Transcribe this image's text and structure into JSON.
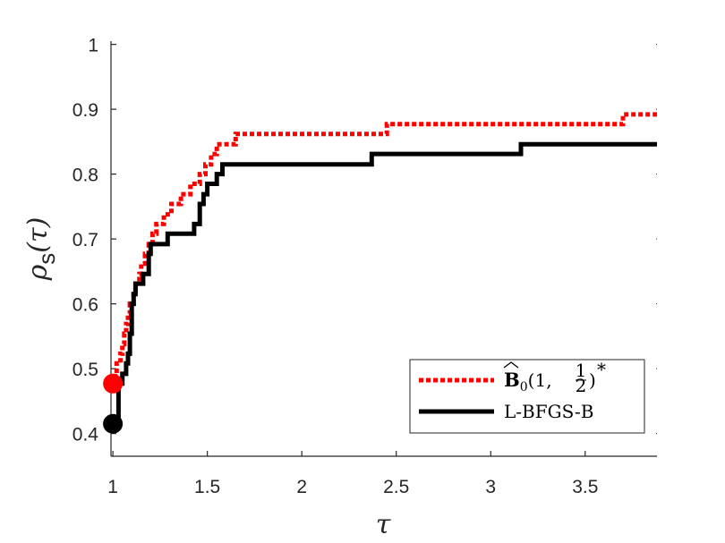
{
  "chart_data": {
    "type": "line",
    "xlabel": "τ",
    "ylabel": "ρ",
    "ylabel_sub": "s",
    "ylabel_suffix": "(τ)",
    "xlim": [
      0.99,
      3.88
    ],
    "ylim": [
      0.365,
      1.005
    ],
    "xticks": [
      1,
      1.5,
      2,
      2.5,
      3,
      3.5
    ],
    "xtick_labels": [
      "1",
      "1.5",
      "2",
      "2.5",
      "3",
      "3.5"
    ],
    "yticks": [
      0.4,
      0.5,
      0.6,
      0.7,
      0.8,
      0.9,
      1
    ],
    "ytick_labels": [
      "0.4",
      "0.5",
      "0.6",
      "0.7",
      "0.8",
      "0.9",
      "1"
    ],
    "grid": false,
    "legend_position": "bottom-right",
    "series": [
      {
        "name": "B̂0(1, ½)*",
        "legend_main": "B",
        "legend_sub": "0",
        "legend_args": "(1, ",
        "legend_frac_num": "1",
        "legend_frac_den": "2",
        "legend_close": ")",
        "legend_sup": "*",
        "color": "#ff0000",
        "style": "dotted",
        "start_marker": [
          1.0,
          0.477
        ],
        "points": [
          [
            1.0,
            0.477
          ],
          [
            1.01,
            0.477
          ],
          [
            1.01,
            0.492
          ],
          [
            1.02,
            0.492
          ],
          [
            1.02,
            0.508
          ],
          [
            1.04,
            0.508
          ],
          [
            1.04,
            0.523
          ],
          [
            1.05,
            0.523
          ],
          [
            1.05,
            0.538
          ],
          [
            1.06,
            0.538
          ],
          [
            1.06,
            0.554
          ],
          [
            1.07,
            0.554
          ],
          [
            1.07,
            0.569
          ],
          [
            1.08,
            0.569
          ],
          [
            1.08,
            0.585
          ],
          [
            1.09,
            0.585
          ],
          [
            1.09,
            0.6
          ],
          [
            1.11,
            0.6
          ],
          [
            1.11,
            0.615
          ],
          [
            1.12,
            0.615
          ],
          [
            1.12,
            0.631
          ],
          [
            1.14,
            0.631
          ],
          [
            1.14,
            0.646
          ],
          [
            1.15,
            0.646
          ],
          [
            1.15,
            0.662
          ],
          [
            1.17,
            0.662
          ],
          [
            1.17,
            0.677
          ],
          [
            1.19,
            0.677
          ],
          [
            1.19,
            0.692
          ],
          [
            1.21,
            0.692
          ],
          [
            1.21,
            0.708
          ],
          [
            1.23,
            0.708
          ],
          [
            1.23,
            0.723
          ],
          [
            1.27,
            0.723
          ],
          [
            1.27,
            0.738
          ],
          [
            1.31,
            0.738
          ],
          [
            1.31,
            0.754
          ],
          [
            1.36,
            0.754
          ],
          [
            1.36,
            0.769
          ],
          [
            1.41,
            0.769
          ],
          [
            1.41,
            0.785
          ],
          [
            1.46,
            0.785
          ],
          [
            1.46,
            0.8
          ],
          [
            1.49,
            0.8
          ],
          [
            1.49,
            0.815
          ],
          [
            1.52,
            0.815
          ],
          [
            1.52,
            0.831
          ],
          [
            1.55,
            0.831
          ],
          [
            1.55,
            0.846
          ],
          [
            1.65,
            0.846
          ],
          [
            1.65,
            0.862
          ],
          [
            2.45,
            0.862
          ],
          [
            2.45,
            0.877
          ],
          [
            3.7,
            0.877
          ],
          [
            3.7,
            0.892
          ],
          [
            3.88,
            0.892
          ]
        ]
      },
      {
        "name": "L-BFGS-B",
        "color": "#000000",
        "style": "solid",
        "start_marker": [
          1.0,
          0.415
        ],
        "points": [
          [
            1.0,
            0.415
          ],
          [
            1.03,
            0.415
          ],
          [
            1.03,
            0.477
          ],
          [
            1.05,
            0.477
          ],
          [
            1.05,
            0.492
          ],
          [
            1.07,
            0.492
          ],
          [
            1.07,
            0.508
          ],
          [
            1.08,
            0.508
          ],
          [
            1.08,
            0.523
          ],
          [
            1.09,
            0.523
          ],
          [
            1.09,
            0.554
          ],
          [
            1.1,
            0.554
          ],
          [
            1.1,
            0.6
          ],
          [
            1.11,
            0.6
          ],
          [
            1.11,
            0.615
          ],
          [
            1.12,
            0.615
          ],
          [
            1.12,
            0.631
          ],
          [
            1.16,
            0.631
          ],
          [
            1.16,
            0.646
          ],
          [
            1.19,
            0.646
          ],
          [
            1.19,
            0.677
          ],
          [
            1.2,
            0.677
          ],
          [
            1.2,
            0.692
          ],
          [
            1.29,
            0.692
          ],
          [
            1.29,
            0.708
          ],
          [
            1.43,
            0.708
          ],
          [
            1.43,
            0.723
          ],
          [
            1.46,
            0.723
          ],
          [
            1.46,
            0.754
          ],
          [
            1.48,
            0.754
          ],
          [
            1.48,
            0.769
          ],
          [
            1.5,
            0.769
          ],
          [
            1.5,
            0.785
          ],
          [
            1.55,
            0.785
          ],
          [
            1.55,
            0.8
          ],
          [
            1.58,
            0.8
          ],
          [
            1.58,
            0.815
          ],
          [
            2.37,
            0.815
          ],
          [
            2.37,
            0.831
          ],
          [
            3.16,
            0.831
          ],
          [
            3.16,
            0.846
          ],
          [
            3.88,
            0.846
          ]
        ]
      }
    ]
  }
}
